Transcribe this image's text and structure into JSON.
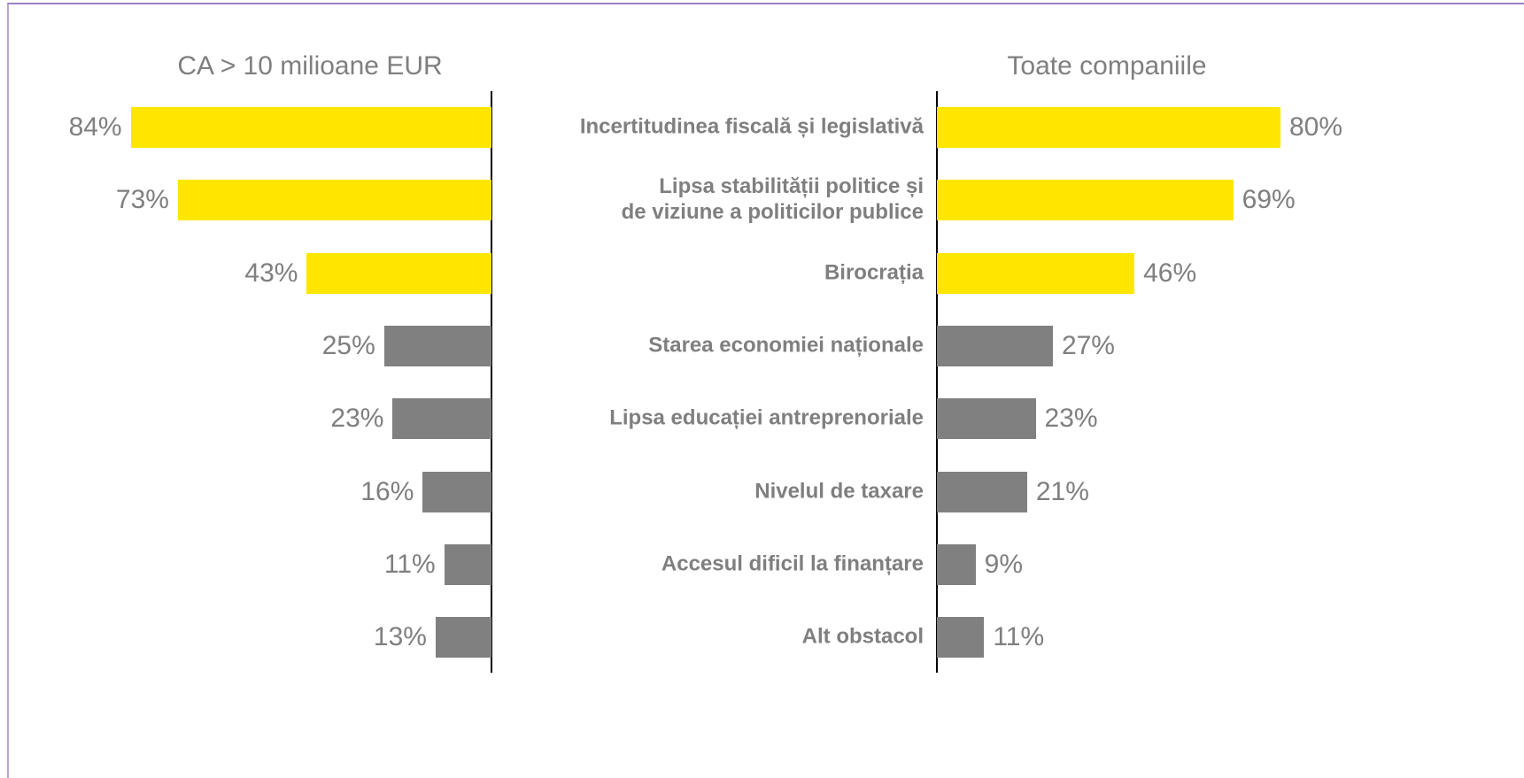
{
  "chart_data": {
    "type": "bar",
    "orientation": "horizontal",
    "categories": [
      "Incertitudinea fiscală și legislativă",
      "Lipsa stabilității politice și \nde viziune a politicilor publice",
      "Birocrația",
      "Starea economiei naționale",
      "Lipsa educației antreprenoriale",
      "Nivelul de taxare",
      "Accesul dificil la finanțare",
      "Alt obstacol"
    ],
    "xlim": [
      0,
      100
    ],
    "series": [
      {
        "name": "CA > 10 milioane EUR",
        "direction": "left",
        "values": [
          84,
          73,
          43,
          25,
          23,
          16,
          11,
          13
        ],
        "value_labels": [
          "84%",
          "73%",
          "43%",
          "25%",
          "23%",
          "16%",
          "11%",
          "13%"
        ],
        "colors": [
          "#ffe600",
          "#ffe600",
          "#ffe600",
          "#808080",
          "#808080",
          "#808080",
          "#808080",
          "#808080"
        ]
      },
      {
        "name": "Toate companiile",
        "direction": "right",
        "values": [
          80,
          69,
          46,
          27,
          23,
          21,
          9,
          11
        ],
        "value_labels": [
          "80%",
          "69%",
          "46%",
          "27%",
          "23%",
          "21%",
          "9%",
          "11%"
        ],
        "colors": [
          "#ffe600",
          "#ffe600",
          "#ffe600",
          "#808080",
          "#808080",
          "#808080",
          "#808080",
          "#808080"
        ]
      }
    ]
  }
}
